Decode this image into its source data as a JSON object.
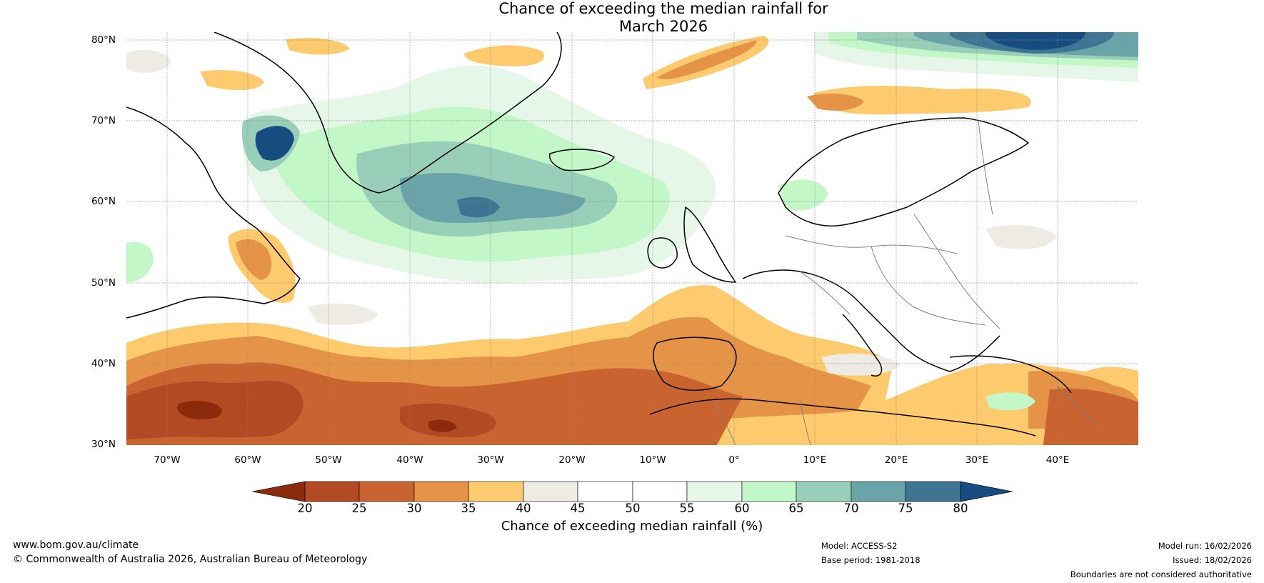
{
  "title_line1": "Chance of exceeding the median rainfall for",
  "title_line2": "March 2026",
  "map": {
    "lat_labels": [
      "80°N",
      "70°N",
      "60°N",
      "50°N",
      "40°N",
      "30°N"
    ],
    "lon_labels": [
      "70°W",
      "60°W",
      "50°W",
      "40°W",
      "30°W",
      "20°W",
      "10°W",
      "0°",
      "10°E",
      "20°E",
      "30°E",
      "40°E"
    ],
    "lat_range": [
      30,
      80
    ],
    "lon_range": [
      -75,
      50
    ]
  },
  "colorbar": {
    "title": "Chance of exceeding median rainfall (%)",
    "ticks": [
      "20",
      "25",
      "30",
      "35",
      "40",
      "45",
      "50",
      "55",
      "60",
      "65",
      "70",
      "75",
      "80"
    ],
    "colors": {
      "below_20": "#8c2b0b",
      "20_25": "#b24a24",
      "25_30": "#c96430",
      "30_35": "#e59447",
      "35_40": "#fdcb6e",
      "40_45": "#eeeae4",
      "45_50": "#ffffff",
      "50_55": "#ffffff",
      "55_60": "#e6f6e8",
      "60_65": "#c4f7c7",
      "65_70": "#99cfb8",
      "70_75": "#6ba4a8",
      "75_80": "#3e7593",
      "above_80": "#164c80"
    }
  },
  "footer": {
    "website": "www.bom.gov.au/climate",
    "copyright": "© Commonwealth of Australia 2026, Australian Bureau of Meteorology",
    "model": "Model: ACCESS-S2",
    "base_period": "Base period: 1981-2018",
    "model_run": "Model run: 16/02/2026",
    "issued": "Issued: 18/02/2026",
    "disclaimer": "Boundaries are not considered authoritative"
  }
}
